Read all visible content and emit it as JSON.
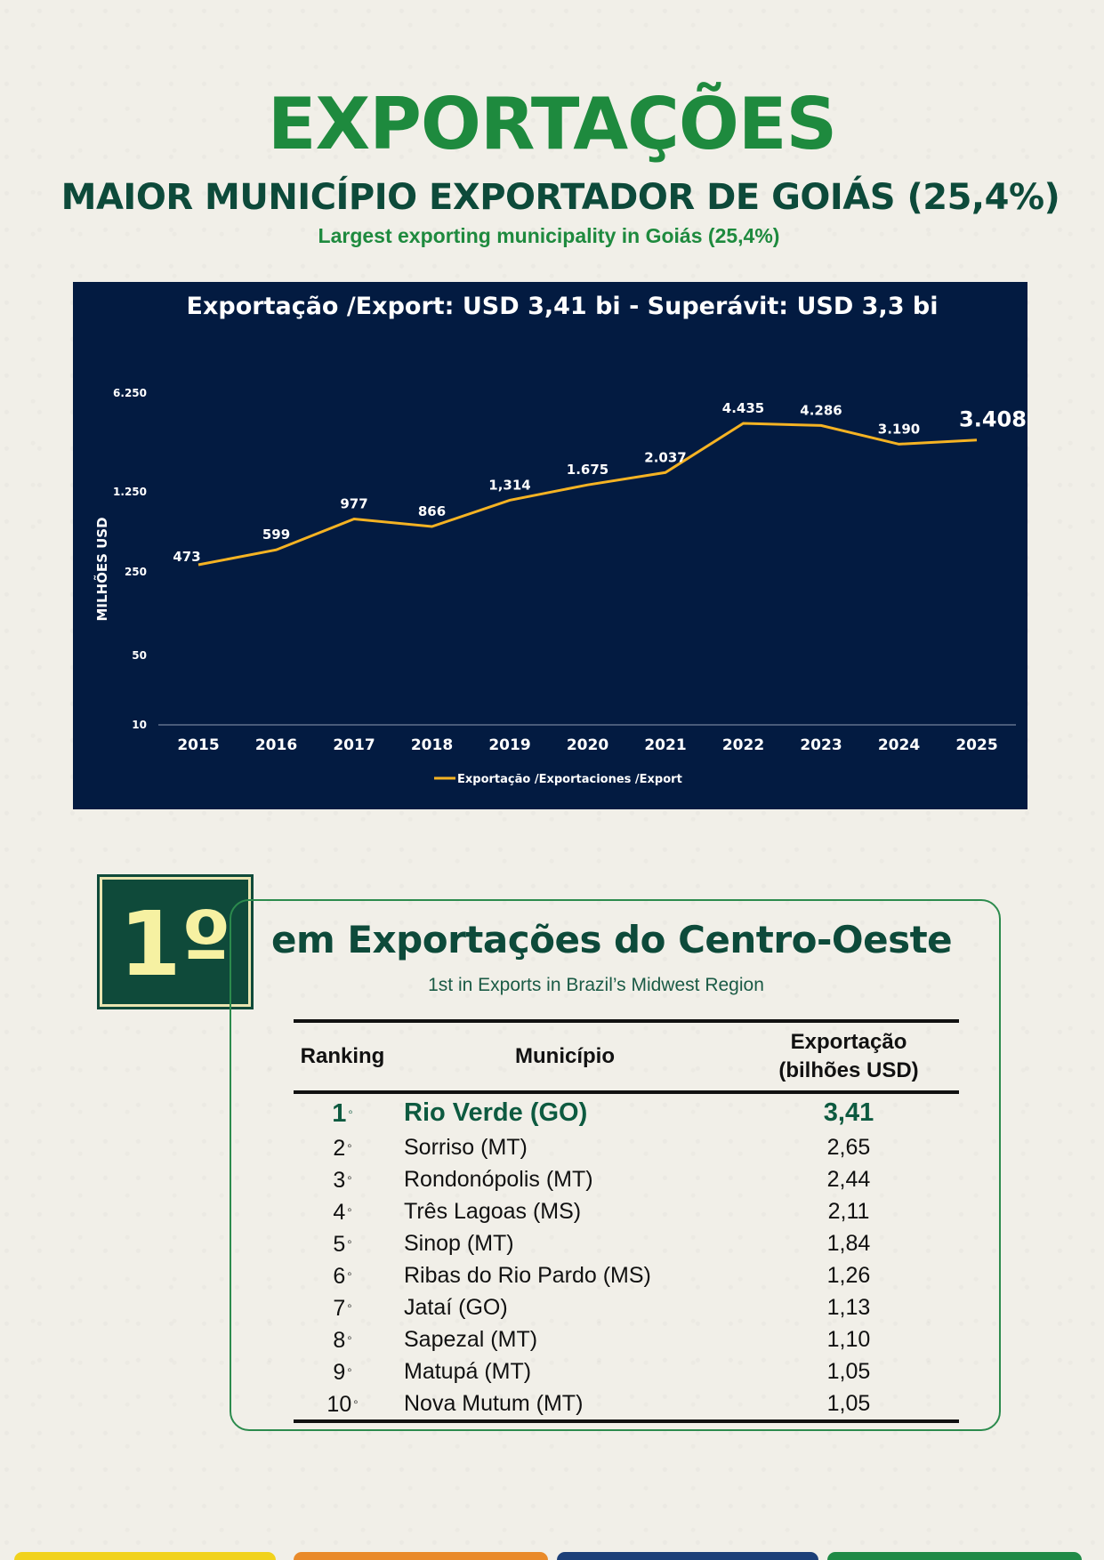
{
  "header": {
    "title": "EXPORTAÇÕES",
    "subtitle_pt": "MAIOR MUNICÍPIO EXPORTADOR DE GOIÁS (25,4%)",
    "subtitle_en": "Largest exporting municipality in Goiás (25,4%)"
  },
  "chart_data": {
    "type": "line",
    "title": "Exportação /Export: USD 3,41 bi - Superávit: USD 3,3 bi",
    "ylabel": "MILHÕES  USD",
    "xlabel": "",
    "y_scale": "log",
    "y_ticks": [
      "10",
      "50",
      "250",
      "1.250",
      "6.250"
    ],
    "y_tick_values": [
      10,
      50,
      250,
      1250,
      6250
    ],
    "x": [
      "2015",
      "2016",
      "2017",
      "2018",
      "2019",
      "2020",
      "2021",
      "2022",
      "2023",
      "2024",
      "2025"
    ],
    "series": [
      {
        "name": "Exportação /Exportaciones /Export",
        "color": "#f5b323",
        "values": [
          473,
          599,
          977,
          866,
          1314,
          1675,
          2037,
          4435,
          4286,
          3190,
          3408
        ],
        "labels": [
          "473",
          "599",
          "977",
          "866",
          "1,314",
          "1.675",
          "2.037",
          "4.435",
          "4.286",
          "3.190",
          "3.408"
        ]
      }
    ],
    "legend": "bottom",
    "grid": false
  },
  "ranking": {
    "badge": "1º",
    "title": "em Exportações do Centro-Oeste",
    "subtitle": "1st in Exports in Brazil’s Midwest Region",
    "headers": {
      "rank": "Ranking",
      "municipality": "Município",
      "export_l1": "Exportação",
      "export_l2": "(bilhões USD)"
    },
    "rows": [
      {
        "rank": "1",
        "name": "Rio Verde (GO)",
        "value": "3,41"
      },
      {
        "rank": "2",
        "name": "Sorriso (MT)",
        "value": "2,65"
      },
      {
        "rank": "3",
        "name": "Rondonópolis (MT)",
        "value": "2,44"
      },
      {
        "rank": "4",
        "name": "Três Lagoas (MS)",
        "value": "2,11"
      },
      {
        "rank": "5",
        "name": "Sinop (MT)",
        "value": "1,84"
      },
      {
        "rank": "6",
        "name": "Ribas do Rio Pardo (MS)",
        "value": "1,26"
      },
      {
        "rank": "7",
        "name": "Jataí (GO)",
        "value": "1,13"
      },
      {
        "rank": "8",
        "name": "Sapezal (MT)",
        "value": "1,10"
      },
      {
        "rank": "9",
        "name": "Matupá (MT)",
        "value": "1,05"
      },
      {
        "rank": "10",
        "name": "Nova Mutum (MT)",
        "value": "1,05"
      }
    ],
    "degree_mark": "◦"
  },
  "colors": {
    "title_green": "#1e8a3e",
    "dark_green": "#0d4a3a",
    "chart_bg": "#031b41",
    "line": "#f5b323",
    "bar_yellow": "#f1d21c",
    "bar_orange": "#e98a2a",
    "bar_blue": "#1c3f78",
    "bar_green": "#1f8a46"
  }
}
